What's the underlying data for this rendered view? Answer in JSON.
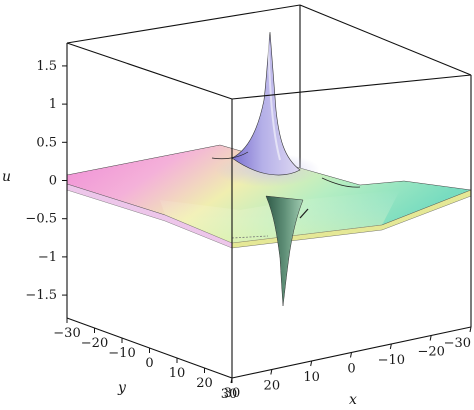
{
  "chart_data": {
    "type": "surface3d",
    "title": "",
    "xlabel": "x",
    "ylabel": "y",
    "zlabel": "u",
    "x_range": [
      -30,
      30
    ],
    "y_range": [
      -30,
      30
    ],
    "z_range": [
      -1.8,
      1.8
    ],
    "x_ticks": [
      "30",
      "20",
      "10",
      "0",
      "−10",
      "−20",
      "−30"
    ],
    "y_ticks": [
      "−30",
      "−20",
      "−10",
      "0",
      "10",
      "20",
      "30"
    ],
    "z_ticks": [
      "−1.5",
      "−1",
      "−0.5",
      "0",
      "0.5",
      "1",
      "1.5"
    ],
    "z_tick_values": [
      -1.5,
      -1,
      -0.5,
      0,
      0.5,
      1,
      1.5
    ],
    "surface_peak": {
      "x": 0,
      "y": 0,
      "max_u": 1.85,
      "min_u": -1.75
    },
    "legend": "none",
    "grid": false
  },
  "colors": {
    "box": "#111111",
    "surface_left": "#e97fd6",
    "surface_right": "#7fe3c2",
    "surface_front": "#f1f29a",
    "peak": "#8f84d8",
    "trough": "#4f7a66"
  }
}
